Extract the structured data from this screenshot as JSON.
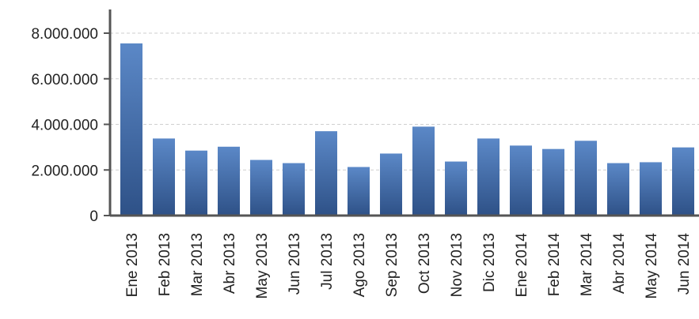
{
  "chart_data": {
    "type": "bar",
    "categories": [
      "Ene 2013",
      "Feb 2013",
      "Mar 2013",
      "Abr 2013",
      "May 2013",
      "Jun 2013",
      "Jul 2013",
      "Ago 2013",
      "Sep 2013",
      "Oct 2013",
      "Nov 2013",
      "Dic 2013",
      "Ene 2014",
      "Feb 2014",
      "Mar 2014",
      "Abr 2014",
      "May 2014",
      "Jun 2014"
    ],
    "values": [
      7550000,
      3380000,
      2850000,
      3020000,
      2440000,
      2300000,
      3700000,
      2130000,
      2720000,
      3900000,
      2370000,
      3380000,
      3070000,
      2920000,
      3280000,
      2300000,
      2340000,
      2990000
    ],
    "ylim": [
      0,
      8000000
    ],
    "yticks": [
      0,
      2000000,
      4000000,
      6000000,
      8000000
    ],
    "ytick_labels": [
      "0",
      "2.000.000",
      "4.000.000",
      "6.000.000",
      "8.000.000"
    ],
    "grid": true,
    "legend": "none",
    "title": "",
    "xlabel": "",
    "ylabel": "",
    "colors": {
      "bar_top": "#5b88c7",
      "bar_bottom": "#2e5187",
      "axis": "#555555",
      "grid": "#cfcfcf",
      "text": "#222222"
    }
  }
}
